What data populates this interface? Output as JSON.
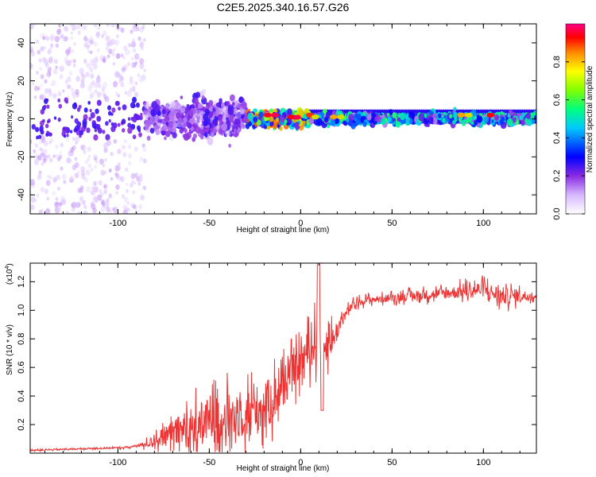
{
  "title": "C2E5.2025.340.16.57.G26",
  "colors": {
    "snr_line": "#ee3333",
    "axis": "#000000",
    "colormap": [
      "#ffffff",
      "#d6b8ff",
      "#8a2be2",
      "#0000ff",
      "#00c8ff",
      "#00ff80",
      "#c8ff00",
      "#ff8800",
      "#ff0000",
      "#ff0088"
    ]
  },
  "chart_data": [
    {
      "id": "spectrogram",
      "type": "heatmap",
      "xlabel": "Height of straight line (km)",
      "ylabel": "Frequency (Hz)",
      "xlim": [
        -148,
        129
      ],
      "ylim": [
        -50,
        50
      ],
      "xticks": [
        -100,
        -50,
        0,
        50,
        100
      ],
      "yticks": [
        -40,
        -20,
        0,
        20,
        40
      ],
      "colorbar": {
        "label": "Normalized spectral amplitude",
        "range": [
          0.0,
          1.0
        ],
        "ticks": [
          0.0,
          0.2,
          0.4,
          0.6,
          0.8
        ]
      },
      "description_bands": [
        {
          "x_range": [
            -148,
            -85
          ],
          "spread_hz": 50,
          "amplitude": 0.1
        },
        {
          "x_range": [
            -85,
            -30
          ],
          "spread_hz": 10,
          "amplitude": 0.25
        },
        {
          "x_range": [
            -30,
            5
          ],
          "spread_hz": 4,
          "amplitude": 0.7
        },
        {
          "x_range": [
            5,
            129
          ],
          "spread_hz": 3,
          "amplitude": 0.5
        }
      ]
    },
    {
      "id": "snr",
      "type": "line",
      "xlabel": "Height of straight line (km)",
      "ylabel": "SNR (10 * v/v)",
      "y_multiplier": "(x10",
      "y_exponent": "4",
      "xlim": [
        -148,
        129
      ],
      "ylim": [
        0,
        1.33
      ],
      "xticks": [
        -100,
        -50,
        0,
        50,
        100
      ],
      "yticks": [
        0.2,
        0.4,
        0.6,
        0.8,
        1.0,
        1.2
      ],
      "series": [
        {
          "name": "SNR",
          "anchors_x": [
            -148,
            -120,
            -95,
            -85,
            -78,
            -70,
            -60,
            -50,
            -40,
            -30,
            -20,
            -15,
            -8,
            -2,
            3,
            8,
            10,
            12,
            18,
            22,
            26,
            30,
            35,
            45,
            60,
            80,
            95,
            100,
            105,
            110,
            129
          ],
          "anchors_y": [
            0.02,
            0.03,
            0.04,
            0.06,
            0.1,
            0.14,
            0.18,
            0.22,
            0.25,
            0.28,
            0.32,
            0.38,
            0.5,
            0.6,
            0.7,
            0.78,
            0.82,
            0.75,
            0.8,
            0.92,
            1.0,
            1.05,
            1.07,
            1.08,
            1.1,
            1.12,
            1.14,
            1.15,
            1.12,
            1.1,
            1.1
          ],
          "noise_amp_x": [
            -148,
            -90,
            -80,
            -60,
            -20,
            0,
            10,
            25,
            40,
            80,
            110,
            129
          ],
          "noise_amp": [
            0.005,
            0.008,
            0.05,
            0.18,
            0.22,
            0.15,
            0.2,
            0.04,
            0.03,
            0.05,
            0.08,
            0.03
          ]
        }
      ]
    }
  ]
}
